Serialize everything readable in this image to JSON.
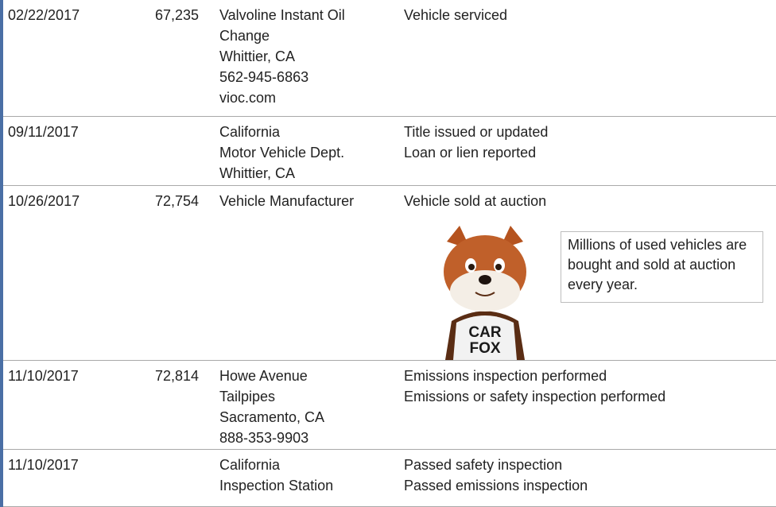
{
  "rows": [
    {
      "date": "02/22/2017",
      "odometer": "67,235",
      "source": [
        "Valvoline Instant Oil",
        "Change",
        "Whittier, CA",
        "562-945-6863",
        "vioc.com"
      ],
      "comments": [
        "Vehicle serviced"
      ]
    },
    {
      "date": "09/11/2017",
      "source": [
        "California",
        "Motor Vehicle Dept.",
        "Whittier, CA"
      ],
      "comments": [
        "Title issued or updated",
        "Loan or lien reported"
      ]
    },
    {
      "date": "10/26/2017",
      "odometer": "72,754",
      "source": [
        "Vehicle Manufacturer"
      ],
      "comments": [
        "Vehicle sold at auction"
      ],
      "callout": "Millions of used vehicles are bought and sold at auction every year.",
      "mascot_shirt": [
        "CAR",
        "FOX"
      ]
    },
    {
      "date": "11/10/2017",
      "odometer": "72,814",
      "source": [
        "Howe Avenue",
        "Tailpipes",
        "Sacramento, CA",
        "888-353-9903"
      ],
      "comments": [
        "Emissions inspection performed",
        "Emissions or safety inspection performed"
      ]
    },
    {
      "date": "11/10/2017",
      "source": [
        "California",
        "Inspection Station"
      ],
      "comments": [
        "Passed safety inspection",
        "Passed emissions inspection"
      ]
    }
  ]
}
